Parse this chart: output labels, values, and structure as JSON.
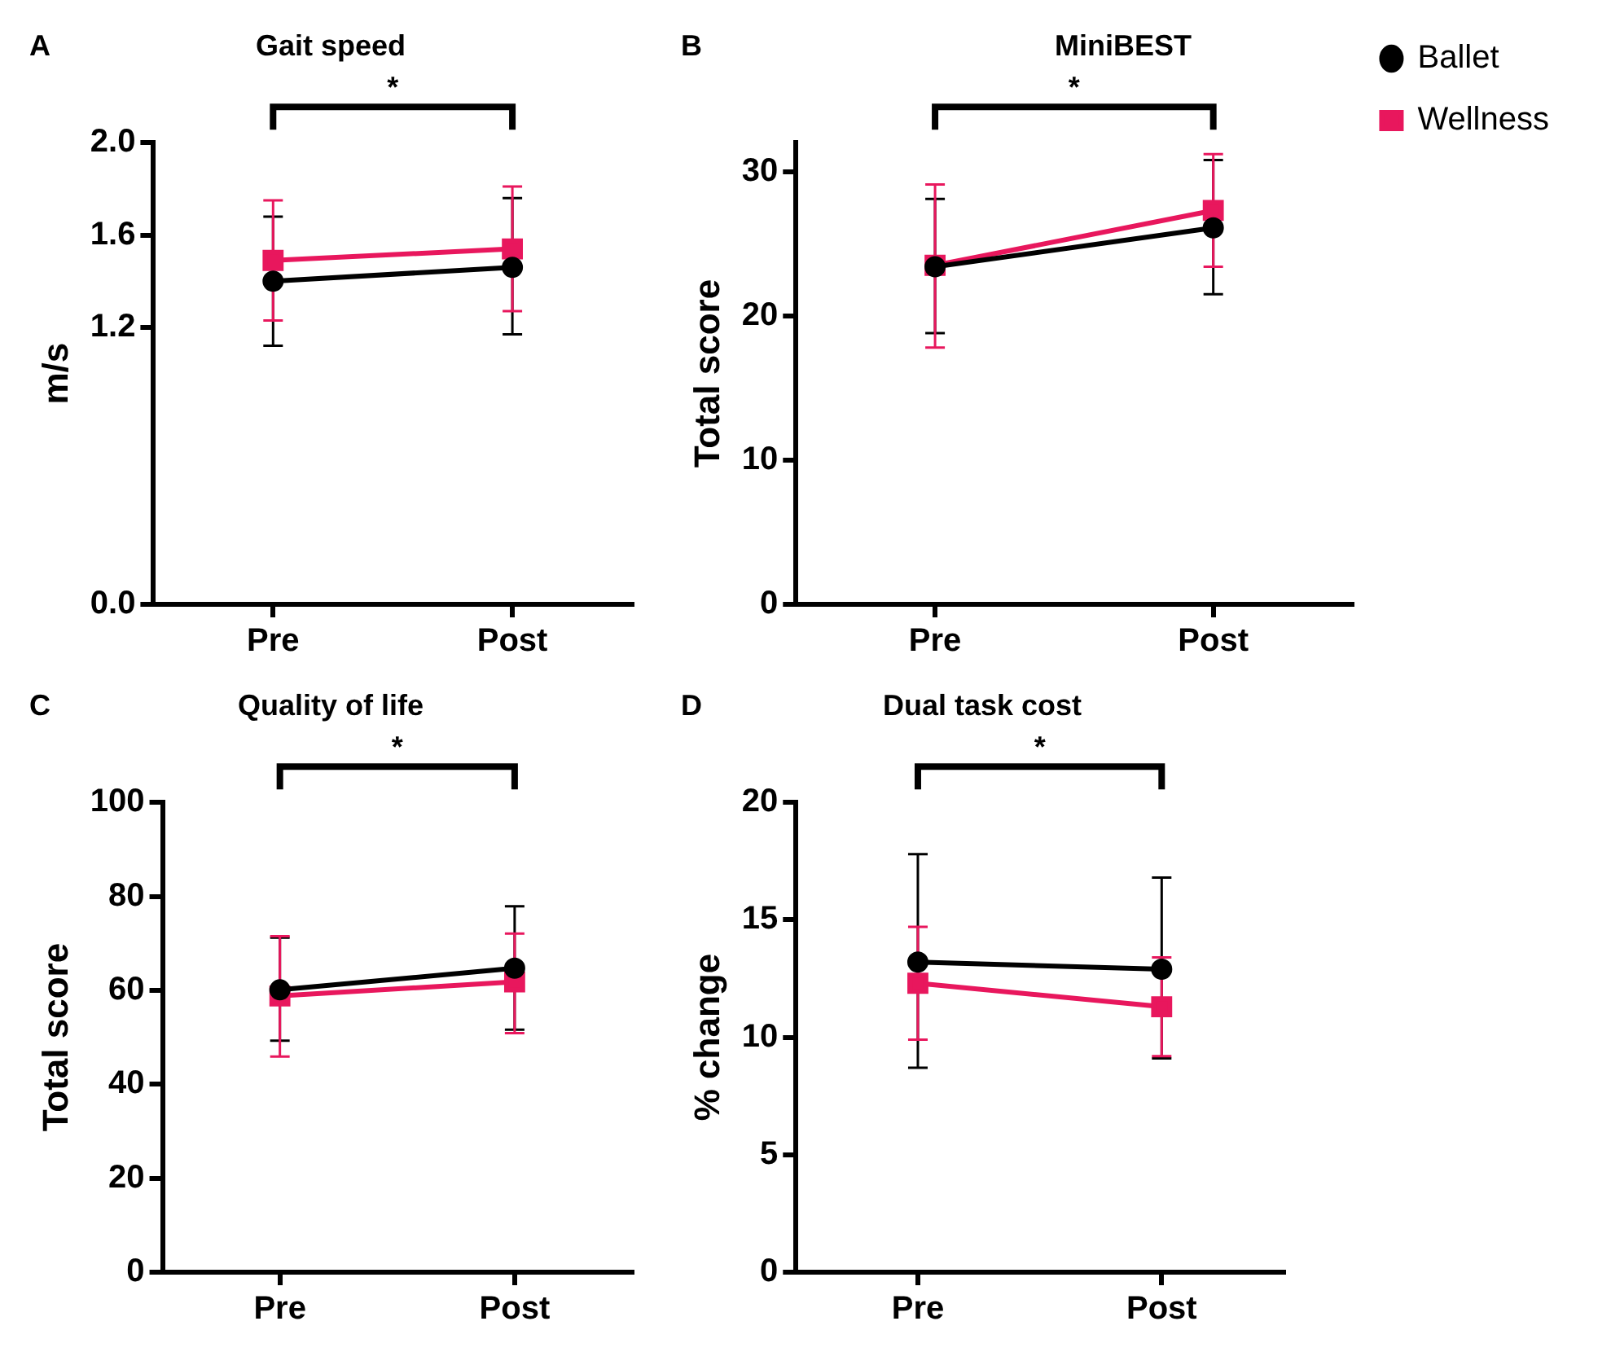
{
  "chart_data": [
    {
      "type": "line",
      "title": "Gait speed",
      "ylabel": "m/s",
      "categories": [
        "Pre",
        "Post"
      ],
      "ylim": [
        0,
        2
      ],
      "yticks": [
        {
          "value": 0,
          "label": "0.0"
        },
        1.2,
        1.6,
        {
          "value": 2,
          "label": "2.0"
        }
      ],
      "grid": false,
      "legend": false,
      "annotations": [
        "A",
        "*"
      ],
      "series": [
        {
          "color": "#000000",
          "marker": "circle",
          "values": [
            1.4,
            1.46
          ],
          "errors": [
            [
              1.12,
              1.68
            ],
            [
              1.17,
              1.76
            ]
          ]
        },
        {
          "color": "#e8175d",
          "marker": "square",
          "values": [
            1.49,
            1.54
          ],
          "errors": [
            [
              1.23,
              1.75
            ],
            [
              1.27,
              1.81
            ]
          ]
        }
      ]
    },
    {
      "type": "line",
      "title": "MiniBEST",
      "ylabel": "Total score",
      "categories": [
        "Pre",
        "Post"
      ],
      "ylim": [
        0,
        32
      ],
      "yticks": [
        0,
        10,
        20,
        30
      ],
      "grid": false,
      "legend": "top right",
      "annotations": [
        "B",
        "*"
      ],
      "series": [
        {
          "name": "Ballet",
          "color": "#000000",
          "marker": "circle",
          "values": [
            23.4,
            26.1
          ],
          "errors": [
            [
              18.8,
              28.1
            ],
            [
              21.5,
              30.8
            ]
          ]
        },
        {
          "name": "Wellness",
          "color": "#e8175d",
          "marker": "square",
          "values": [
            23.5,
            27.3
          ],
          "errors": [
            [
              17.8,
              29.1
            ],
            [
              23.4,
              31.2
            ]
          ]
        }
      ]
    },
    {
      "type": "line",
      "title": "Quality of life",
      "ylabel": "Total score",
      "categories": [
        "Pre",
        "Post"
      ],
      "ylim": [
        0,
        100
      ],
      "yticks": [
        0,
        20,
        40,
        60,
        80,
        100
      ],
      "grid": false,
      "legend": false,
      "annotations": [
        "C",
        "*"
      ],
      "series": [
        {
          "color": "#000000",
          "marker": "circle",
          "values": [
            60.1,
            64.7
          ],
          "errors": [
            [
              49.3,
              71.2
            ],
            [
              51.6,
              77.9
            ]
          ]
        },
        {
          "color": "#e8175d",
          "marker": "square",
          "values": [
            58.8,
            61.8
          ],
          "errors": [
            [
              45.9,
              71.5
            ],
            [
              50.9,
              72.1
            ]
          ]
        }
      ]
    },
    {
      "type": "line",
      "title": "Dual task cost",
      "ylabel": "% change",
      "categories": [
        "Pre",
        "Post"
      ],
      "ylim": [
        0,
        20
      ],
      "yticks": [
        0,
        5,
        10,
        15,
        20
      ],
      "grid": false,
      "legend": false,
      "annotations": [
        "D",
        "*"
      ],
      "series": [
        {
          "color": "#000000",
          "marker": "circle",
          "values": [
            13.2,
            12.9
          ],
          "errors": [
            [
              8.7,
              17.8
            ],
            [
              9.1,
              16.8
            ]
          ]
        },
        {
          "color": "#e8175d",
          "marker": "square",
          "values": [
            12.3,
            11.3
          ],
          "errors": [
            [
              9.9,
              14.7
            ],
            [
              9.2,
              13.4
            ]
          ]
        }
      ]
    }
  ]
}
